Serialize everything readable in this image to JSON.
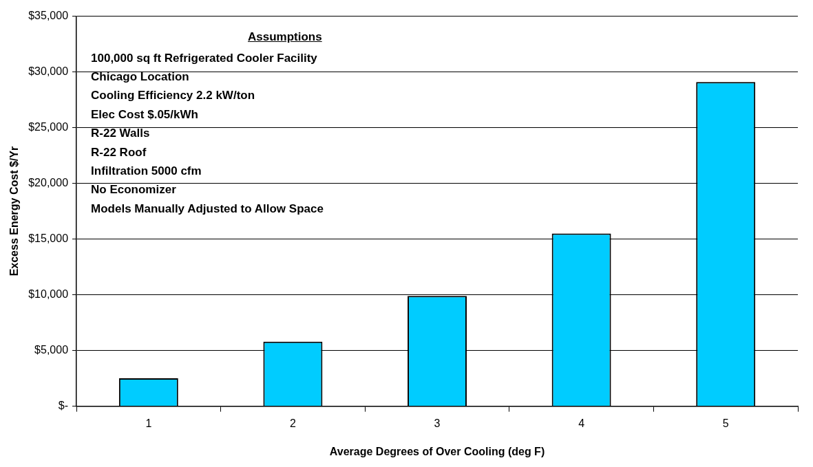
{
  "chart_data": {
    "type": "bar",
    "xlabel": "Average Degrees of Over Cooling (deg F)",
    "ylabel": "Excess Energy Cost $/Yr",
    "categories": [
      "1",
      "2",
      "3",
      "4",
      "5"
    ],
    "values": [
      2500,
      5800,
      9900,
      15500,
      29100
    ],
    "color": "#00ccff",
    "ylim": [
      0,
      35000
    ],
    "yticks": [
      {
        "value": 0,
        "label": "$-"
      },
      {
        "value": 5000,
        "label": "$5,000"
      },
      {
        "value": 10000,
        "label": "$10,000"
      },
      {
        "value": 15000,
        "label": "$15,000"
      },
      {
        "value": 20000,
        "label": "$20,000"
      },
      {
        "value": 25000,
        "label": "$25,000"
      },
      {
        "value": 30000,
        "label": "$30,000"
      },
      {
        "value": 35000,
        "label": "$35,000"
      }
    ],
    "grid": "y",
    "legend": false,
    "annotations": [
      "Assumptions",
      "100,000 sq ft Refrigerated Cooler Facility",
      "Chicago Location",
      "Cooling Efficiency 2.2 kW/ton",
      "Elec Cost $.05/kWh",
      "R-22 Walls",
      "R-22 Roof",
      "Infiltration 5000 cfm",
      "No Economizer",
      "Models Manually Adjusted to Allow Space"
    ]
  }
}
